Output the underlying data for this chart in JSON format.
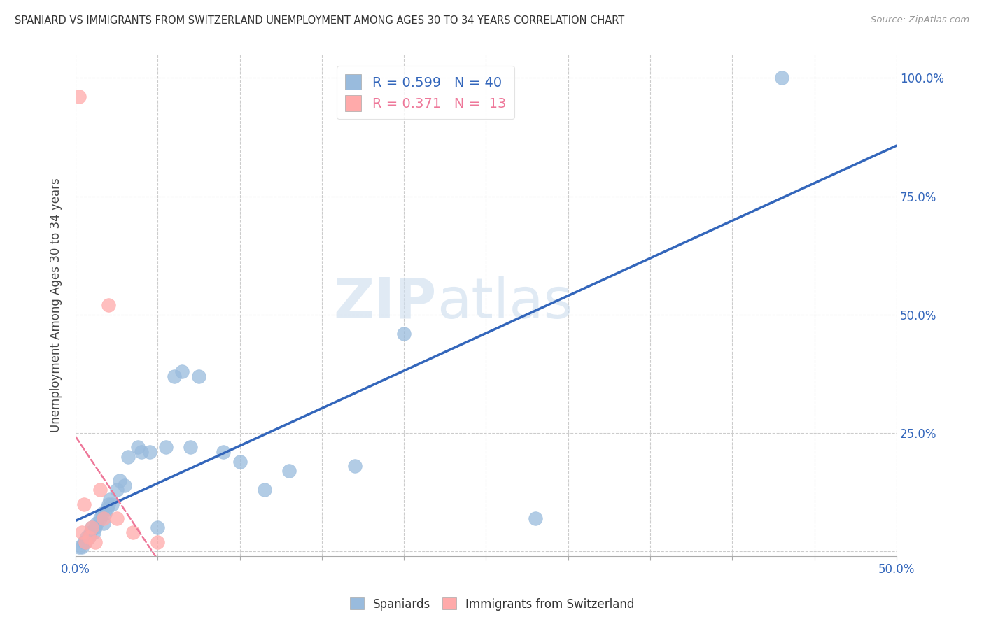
{
  "title": "SPANIARD VS IMMIGRANTS FROM SWITZERLAND UNEMPLOYMENT AMONG AGES 30 TO 34 YEARS CORRELATION CHART",
  "source": "Source: ZipAtlas.com",
  "ylabel": "Unemployment Among Ages 30 to 34 years",
  "xlim": [
    0.0,
    0.5
  ],
  "ylim": [
    -0.01,
    1.05
  ],
  "xticks": [
    0.0,
    0.05,
    0.1,
    0.15,
    0.2,
    0.25,
    0.3,
    0.35,
    0.4,
    0.45,
    0.5
  ],
  "yticks": [
    0.0,
    0.25,
    0.5,
    0.75,
    1.0
  ],
  "blue_color": "#99BBDD",
  "pink_color": "#FFAAAA",
  "blue_line_color": "#3366BB",
  "pink_line_color": "#EE7799",
  "legend_R_blue": "0.599",
  "legend_N_blue": "40",
  "legend_R_pink": "0.371",
  "legend_N_pink": "13",
  "watermark_zip": "ZIP",
  "watermark_atlas": "atlas",
  "blue_scatter_x": [
    0.002,
    0.004,
    0.005,
    0.006,
    0.007,
    0.008,
    0.009,
    0.01,
    0.011,
    0.012,
    0.013,
    0.015,
    0.016,
    0.017,
    0.018,
    0.019,
    0.02,
    0.021,
    0.022,
    0.025,
    0.027,
    0.03,
    0.032,
    0.038,
    0.04,
    0.045,
    0.05,
    0.055,
    0.06,
    0.065,
    0.07,
    0.075,
    0.09,
    0.1,
    0.115,
    0.13,
    0.17,
    0.2,
    0.28,
    0.43
  ],
  "blue_scatter_y": [
    0.01,
    0.01,
    0.02,
    0.02,
    0.03,
    0.03,
    0.04,
    0.05,
    0.04,
    0.05,
    0.06,
    0.07,
    0.08,
    0.06,
    0.08,
    0.09,
    0.1,
    0.11,
    0.1,
    0.13,
    0.15,
    0.14,
    0.2,
    0.22,
    0.21,
    0.21,
    0.05,
    0.22,
    0.37,
    0.38,
    0.22,
    0.37,
    0.21,
    0.19,
    0.13,
    0.17,
    0.18,
    0.46,
    0.07,
    1.0
  ],
  "pink_scatter_x": [
    0.002,
    0.004,
    0.005,
    0.006,
    0.008,
    0.01,
    0.012,
    0.015,
    0.017,
    0.02,
    0.025,
    0.035,
    0.05
  ],
  "pink_scatter_y": [
    0.96,
    0.04,
    0.1,
    0.02,
    0.03,
    0.05,
    0.02,
    0.13,
    0.07,
    0.52,
    0.07,
    0.04,
    0.02
  ]
}
